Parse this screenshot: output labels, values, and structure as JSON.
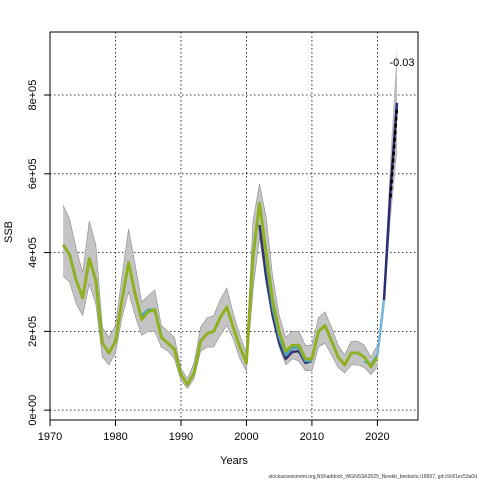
{
  "chart_data": {
    "type": "line",
    "xlabel": "Years",
    "ylabel": "SSB",
    "xlim": [
      1970,
      2026.2
    ],
    "ylim": [
      -25000,
      960000
    ],
    "x_ticks": [
      1970,
      1980,
      1990,
      2000,
      2010,
      2020
    ],
    "x_tick_labels": [
      "1970",
      "1980",
      "1990",
      "2000",
      "2010",
      "2020"
    ],
    "y_ticks": [
      0,
      200000,
      400000,
      600000,
      800000
    ],
    "y_tick_labels": [
      "0e+00",
      "2e+05",
      "4e+05",
      "6e+05",
      "8e+05"
    ],
    "grid": true,
    "grid_x": [
      1970,
      1980,
      1990,
      2000,
      2010,
      2020
    ],
    "annotation": "-0.03",
    "footer": "stockassessment.org,NShaddock_WGNSSK2025_Newkb_bestsels,r18657, git:c9c81ec53a0d",
    "colors": {
      "band": "#c4c4c4",
      "band_edge": "#8a8a8a",
      "fit_main": "#8fb020",
      "fit_retro": "#4aa0c4",
      "fit_dark": "#34356c",
      "forecast": "#2c2b74",
      "forecast_light": "#7ab6dc",
      "forecast_mean": "#000000",
      "forecast_band": "#bdbdbd"
    },
    "years": [
      1972,
      1973,
      1974,
      1975,
      1976,
      1977,
      1978,
      1979,
      1980,
      1981,
      1982,
      1983,
      1984,
      1985,
      1986,
      1987,
      1988,
      1989,
      1990,
      1991,
      1992,
      1993,
      1994,
      1995,
      1996,
      1997,
      1998,
      1999,
      2000,
      2001,
      2002,
      2003,
      2004,
      2005,
      2006,
      2007,
      2008,
      2009,
      2010,
      2011,
      2012,
      2013,
      2014,
      2015,
      2016,
      2017,
      2018,
      2019,
      2020
    ],
    "ssb": [
      420000,
      395000,
      330000,
      285000,
      385000,
      330000,
      170000,
      145000,
      175000,
      280000,
      375000,
      295000,
      230000,
      250000,
      255000,
      185000,
      170000,
      155000,
      90000,
      65000,
      95000,
      175000,
      195000,
      200000,
      235000,
      262000,
      210000,
      160000,
      120000,
      390000,
      525000,
      400000,
      280000,
      200000,
      150000,
      165000,
      165000,
      130000,
      130000,
      200000,
      215000,
      175000,
      135000,
      115000,
      145000,
      145000,
      135000,
      110000,
      135000
    ],
    "lower": [
      340000,
      325000,
      270000,
      240000,
      320000,
      270000,
      135000,
      115000,
      145000,
      235000,
      300000,
      240000,
      190000,
      200000,
      200000,
      160000,
      150000,
      130000,
      75000,
      55000,
      80000,
      150000,
      160000,
      160000,
      190000,
      215000,
      180000,
      130000,
      100000,
      305000,
      440000,
      320000,
      230000,
      160000,
      115000,
      130000,
      125000,
      100000,
      100000,
      160000,
      170000,
      140000,
      108000,
      94000,
      115000,
      115000,
      108000,
      90000,
      110000
    ],
    "upper": [
      520000,
      485000,
      410000,
      350000,
      480000,
      420000,
      210000,
      185000,
      215000,
      340000,
      460000,
      370000,
      275000,
      290000,
      305000,
      215000,
      200000,
      185000,
      105000,
      80000,
      120000,
      210000,
      235000,
      240000,
      280000,
      310000,
      245000,
      190000,
      145000,
      480000,
      575000,
      490000,
      340000,
      240000,
      185000,
      200000,
      200000,
      165000,
      165000,
      235000,
      250000,
      210000,
      165000,
      140000,
      175000,
      175000,
      165000,
      135000,
      165000
    ],
    "retro_series": [
      {
        "years": [
          2002,
          2003,
          2004,
          2005,
          2006,
          2007,
          2008,
          2009,
          2010
        ],
        "ssb": [
          470000,
          340000,
          240000,
          170000,
          130000,
          148000,
          150000,
          120000,
          125000
        ]
      },
      {
        "years": [
          2003,
          2004,
          2005,
          2006,
          2007,
          2008,
          2009,
          2010
        ],
        "ssb": [
          380000,
          260000,
          185000,
          140000,
          158000,
          158000,
          125000,
          125000
        ]
      },
      {
        "years": [
          1984,
          1985,
          1986,
          1987
        ],
        "ssb": [
          240000,
          255000,
          255000,
          190000
        ]
      },
      {
        "years": [
          2018,
          2019,
          2020
        ],
        "ssb": [
          125000,
          115000,
          140000
        ]
      }
    ],
    "forecast_years": [
      2020,
      2021,
      2022,
      2023
    ],
    "forecast_ssb": [
      140000,
      280000,
      560000,
      780000
    ],
    "forecast_lower": [
      120000,
      250000,
      480000,
      650000
    ],
    "forecast_upper": [
      165000,
      310000,
      650000,
      920000
    ],
    "forecast_mean_years": [
      2022,
      2023
    ],
    "forecast_mean_ssb": [
      540000,
      770000
    ]
  }
}
